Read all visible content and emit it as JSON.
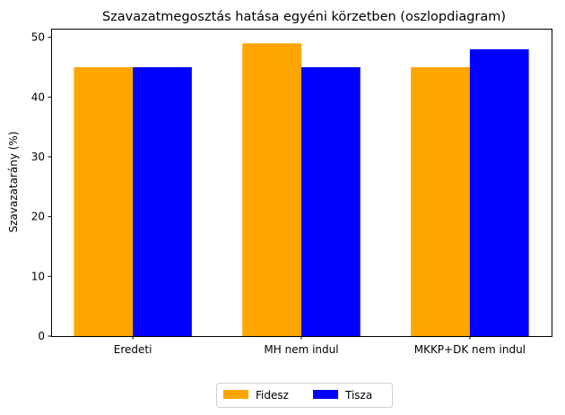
{
  "chart_data": {
    "type": "bar",
    "title": "Szavazatmegosztás hatása egyéni körzetben (oszlopdiagram)",
    "xlabel": "",
    "ylabel": "Szavazatarány (%)",
    "categories": [
      "Eredeti",
      "MH nem indul",
      "MKKP+DK nem indul"
    ],
    "series": [
      {
        "name": "Fidesz",
        "color": "#ffa500",
        "values": [
          45,
          49,
          45
        ]
      },
      {
        "name": "Tisza",
        "color": "#0000ff",
        "values": [
          45,
          45,
          48
        ]
      }
    ],
    "ylim": [
      0,
      51.45
    ],
    "yticks": [
      0,
      10,
      20,
      30,
      40,
      50
    ],
    "grid": false,
    "legend_position": "bottom-center"
  }
}
